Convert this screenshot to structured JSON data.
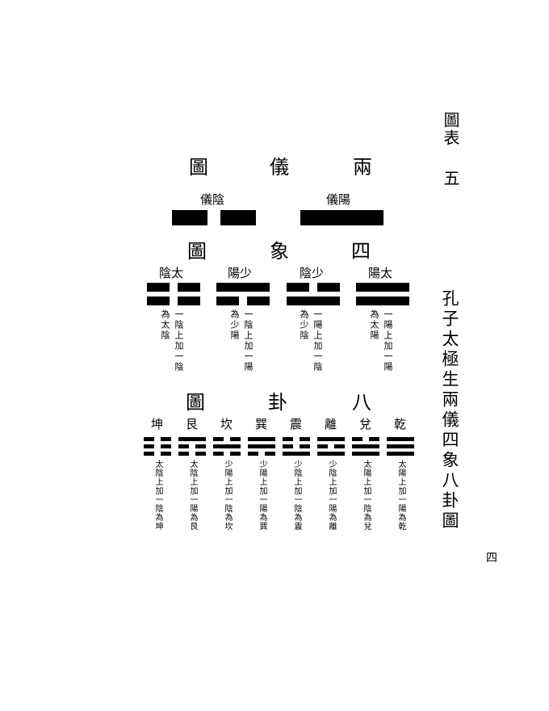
{
  "sidebar": {
    "label_chart": "圖表",
    "label_number": "五",
    "caption": "孔子太極生兩儀四象八卦圖"
  },
  "page_number": "四",
  "liangyi": {
    "title": [
      "圖",
      "儀",
      "兩"
    ],
    "yin_label": "儀陰",
    "yang_label": "儀陽"
  },
  "sixiang": {
    "title": [
      "圖",
      "象",
      "四"
    ],
    "items": [
      {
        "name": "陰太",
        "note_right": "一陰上加一陰",
        "note_left": "為太陰"
      },
      {
        "name": "陽少",
        "note_right": "一陰上加一陽",
        "note_left": "為少陽"
      },
      {
        "name": "陰少",
        "note_right": "一陽上加一陰",
        "note_left": "為少陰"
      },
      {
        "name": "陽太",
        "note_right": "一陽上加一陽",
        "note_left": "為太陽"
      }
    ]
  },
  "bagua": {
    "title": [
      "圖",
      "卦",
      "八"
    ],
    "items": [
      {
        "name": "坤",
        "note": "太陰上加一陰為坤"
      },
      {
        "name": "艮",
        "note": "太陰上加一陽為艮"
      },
      {
        "name": "坎",
        "note": "少陽上加一陰為坎"
      },
      {
        "name": "巽",
        "note": "少陽上加一陽為巽"
      },
      {
        "name": "震",
        "note": "少陰上加一陰為震"
      },
      {
        "name": "離",
        "note": "少陰上加一陽為離"
      },
      {
        "name": "兌",
        "note": "太陽上加一陰為兌"
      },
      {
        "name": "乾",
        "note": "太陽上加一陽為乾"
      }
    ]
  }
}
